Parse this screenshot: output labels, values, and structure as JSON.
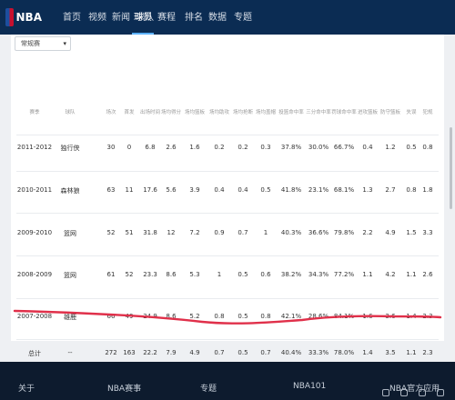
{
  "nav": {
    "logo_text": "NBA",
    "items": [
      "首页",
      "视频",
      "新闻",
      "球队",
      "球员",
      "赛程",
      "排名",
      "数据",
      "专题"
    ],
    "active_index": 4
  },
  "filter": {
    "selected": "常规赛"
  },
  "table": {
    "headers": [
      "赛季",
      "球队",
      "场次",
      "首发",
      "出场时间",
      "场均得分",
      "场均篮板",
      "场均助攻",
      "场均抢断",
      "场均盖帽",
      "投篮命中率",
      "三分命中率",
      "罚球命中率",
      "进攻篮板",
      "防守篮板",
      "失误",
      "犯规"
    ],
    "rows": [
      [
        "2011-2012",
        "独行侠",
        "30",
        "0",
        "6.8",
        "2.6",
        "1.6",
        "0.2",
        "0.2",
        "0.3",
        "37.8%",
        "30.0%",
        "66.7%",
        "0.4",
        "1.2",
        "0.5",
        "0.8"
      ],
      [
        "2010-2011",
        "森林狼",
        "63",
        "11",
        "17.6",
        "5.6",
        "3.9",
        "0.4",
        "0.4",
        "0.5",
        "41.8%",
        "23.1%",
        "68.1%",
        "1.3",
        "2.7",
        "0.8",
        "1.8"
      ],
      [
        "2009-2010",
        "篮网",
        "52",
        "51",
        "31.8",
        "12",
        "7.2",
        "0.9",
        "0.7",
        "1",
        "40.3%",
        "36.6%",
        "79.8%",
        "2.2",
        "4.9",
        "1.5",
        "3.3"
      ],
      [
        "2008-2009",
        "篮网",
        "61",
        "52",
        "23.3",
        "8.6",
        "5.3",
        "1",
        "0.5",
        "0.6",
        "38.2%",
        "34.3%",
        "77.2%",
        "1.1",
        "4.2",
        "1.1",
        "2.6"
      ],
      [
        "2007-2008",
        "雄鹿",
        "66",
        "49",
        "24.9",
        "8.6",
        "5.2",
        "0.8",
        "0.5",
        "0.8",
        "42.1%",
        "28.6%",
        "84.1%",
        "1.6",
        "3.6",
        "1.4",
        "2.3"
      ],
      [
        "总计",
        "--",
        "272",
        "163",
        "22.2",
        "7.9",
        "4.9",
        "0.7",
        "0.5",
        "0.7",
        "40.4%",
        "33.3%",
        "78.0%",
        "1.4",
        "3.5",
        "1.1",
        "2.3"
      ]
    ]
  },
  "footer": {
    "items": [
      "关于",
      "NBA赛事",
      "专题",
      "NBA101",
      "NBA官方应用"
    ]
  },
  "colors": {
    "nav_bg": "#0b2c53",
    "footer_bg": "#0d1b2e",
    "annotation": "#e0304a",
    "active_underline": "#5bb1ff"
  }
}
